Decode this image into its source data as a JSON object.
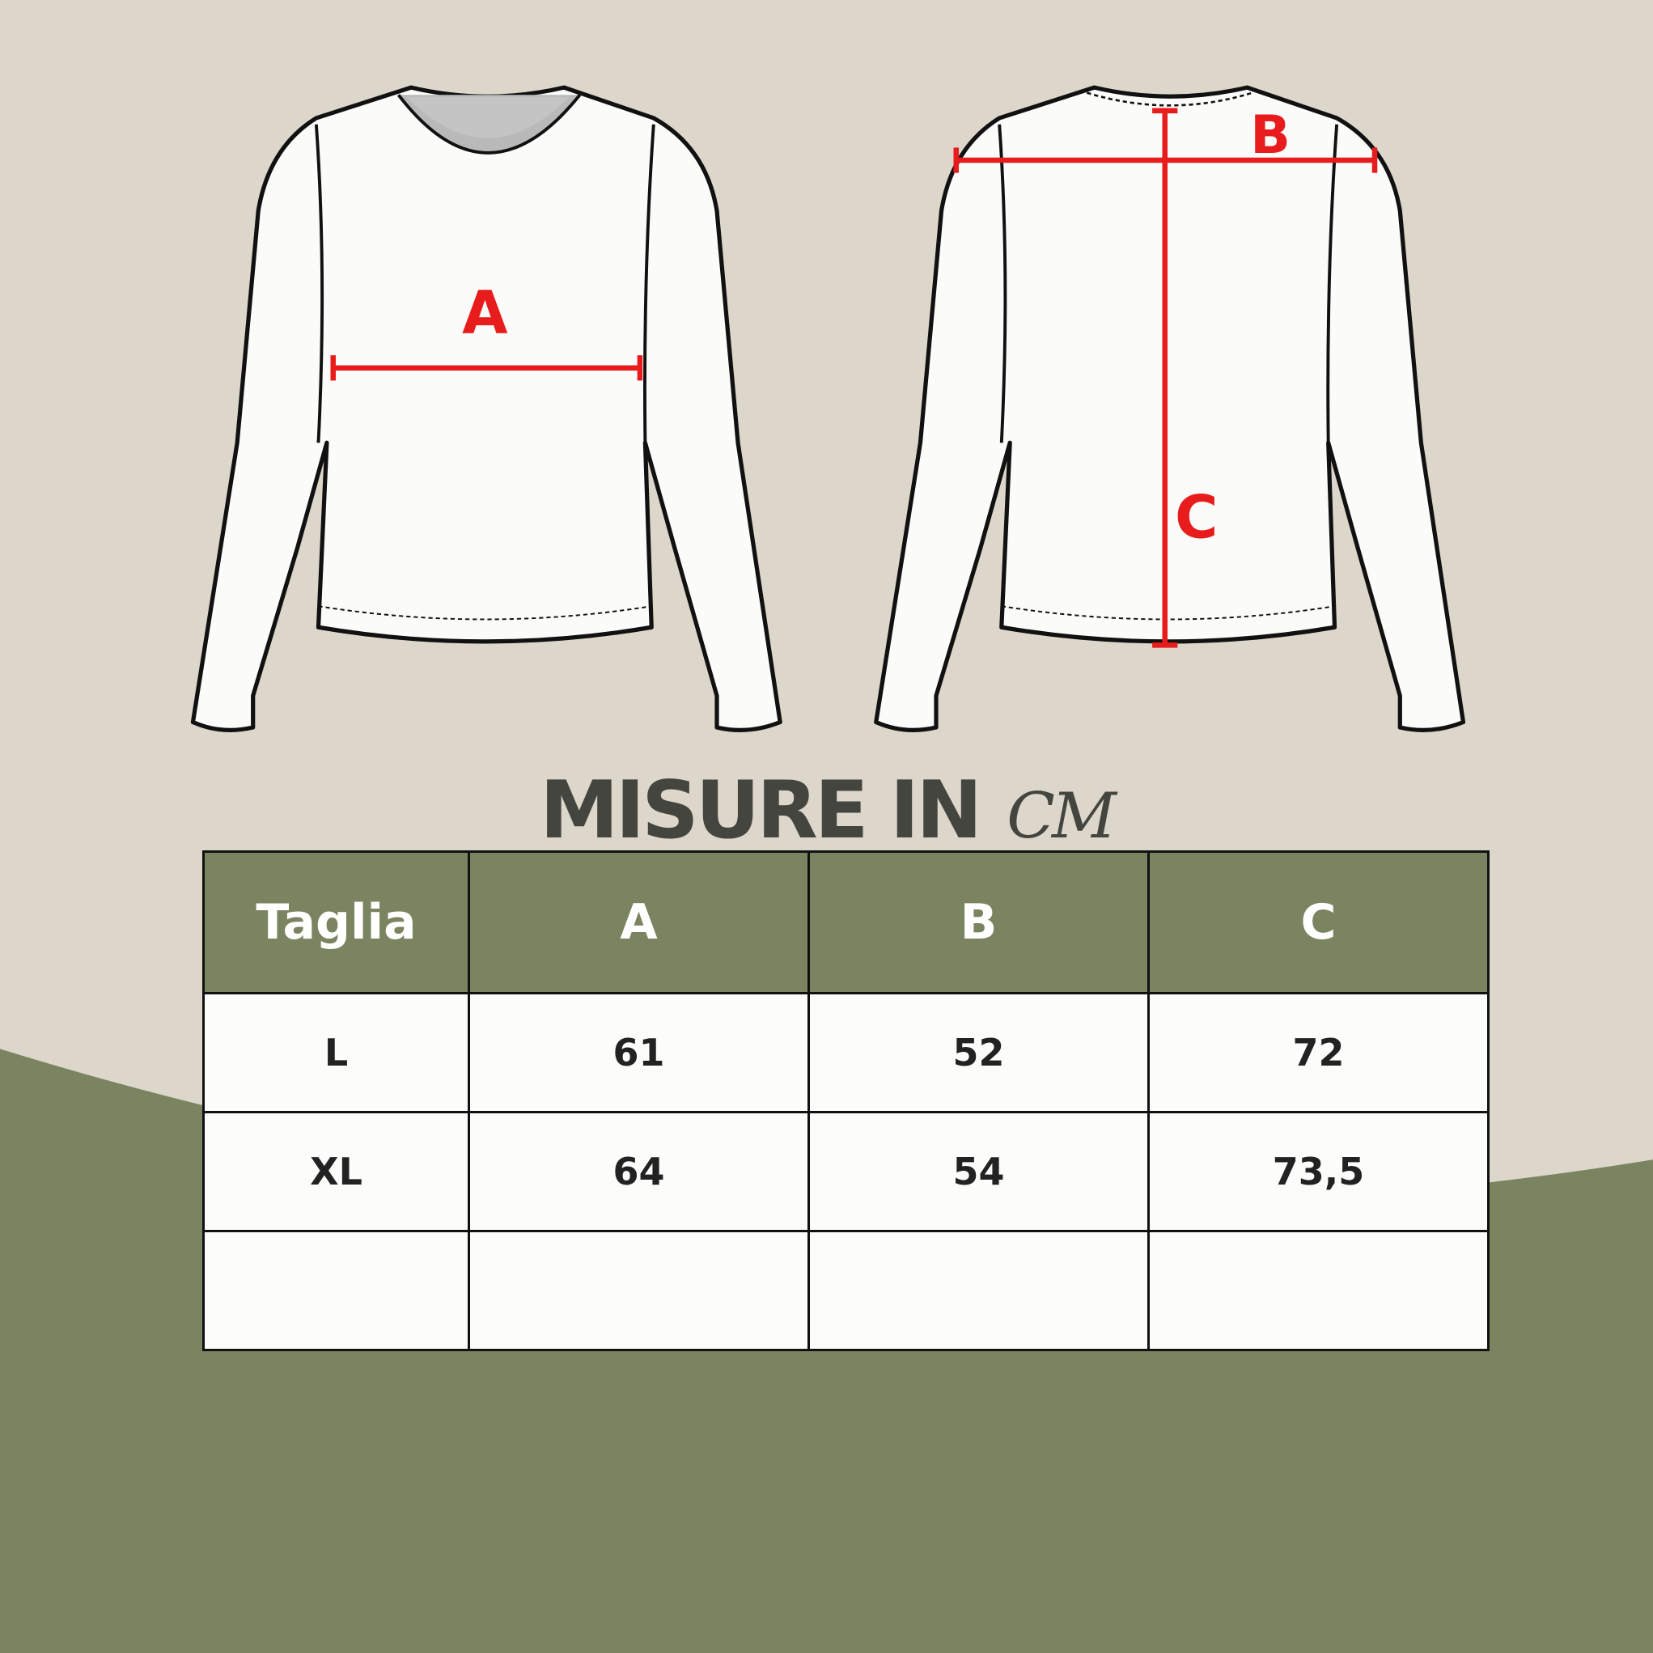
{
  "colors": {
    "background": "#dcd6cb",
    "accent_green": "#7a8460",
    "measure_red": "#e81c1c",
    "title": "#454540"
  },
  "diagram": {
    "front_label": "A",
    "back_labels": [
      "B",
      "C"
    ]
  },
  "title": {
    "main": "MISURE IN",
    "unit": "CM"
  },
  "table": {
    "headers": [
      "Taglia",
      "A",
      "B",
      "C"
    ],
    "rows": [
      [
        "L",
        "61",
        "52",
        "72"
      ],
      [
        "XL",
        "64",
        "54",
        "73,5"
      ],
      [
        "",
        "",
        "",
        ""
      ]
    ]
  }
}
